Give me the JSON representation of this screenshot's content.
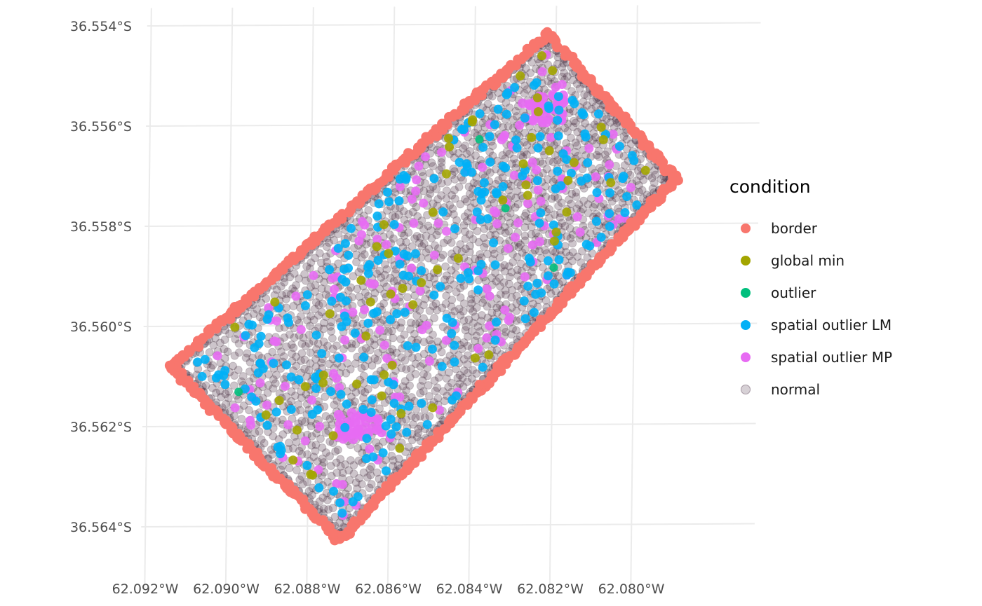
{
  "chart_data": {
    "type": "scatter",
    "title": "",
    "xlabel": "",
    "ylabel": "",
    "x_ticks": [
      {
        "value": -62.092,
        "label": "62.092°W"
      },
      {
        "value": -62.09,
        "label": "62.090°W"
      },
      {
        "value": -62.088,
        "label": "62.088°W"
      },
      {
        "value": -62.086,
        "label": "62.086°W"
      },
      {
        "value": -62.084,
        "label": "62.084°W"
      },
      {
        "value": -62.082,
        "label": "62.082°W"
      },
      {
        "value": -62.08,
        "label": "62.080°W"
      }
    ],
    "y_ticks": [
      {
        "value": -36.554,
        "label": "36.554°S"
      },
      {
        "value": -36.556,
        "label": "36.556°S"
      },
      {
        "value": -36.558,
        "label": "36.558°S"
      },
      {
        "value": -36.56,
        "label": "36.560°S"
      },
      {
        "value": -36.562,
        "label": "36.562°S"
      },
      {
        "value": -36.564,
        "label": "36.564°S"
      }
    ],
    "xlim": [
      -62.0921,
      -62.0786
    ],
    "ylim": [
      -36.5648,
      -36.5537
    ],
    "grid": true,
    "legend": {
      "title": "condition",
      "position": "right",
      "entries": [
        {
          "label": "border",
          "color": "#F8766D"
        },
        {
          "label": "global min",
          "color": "#A3A500"
        },
        {
          "label": "outlier",
          "color": "#00BF7D"
        },
        {
          "label": "spatial outlier LM",
          "color": "#00B0F6"
        },
        {
          "label": "spatial outlier MP",
          "color": "#E76BF3"
        },
        {
          "label": "normal",
          "color": "#4B2F45"
        }
      ]
    },
    "field_corners": [
      {
        "lon": -62.0914,
        "lat": -36.5608
      },
      {
        "lon": -62.0822,
        "lat": -36.5542
      },
      {
        "lon": -62.079,
        "lat": -36.5571
      },
      {
        "lon": -62.0872,
        "lat": -36.5643
      }
    ],
    "pink_clusters": [
      {
        "lon": -62.0823,
        "lat": -36.5557
      },
      {
        "lon": -62.0868,
        "lat": -36.562
      }
    ]
  }
}
